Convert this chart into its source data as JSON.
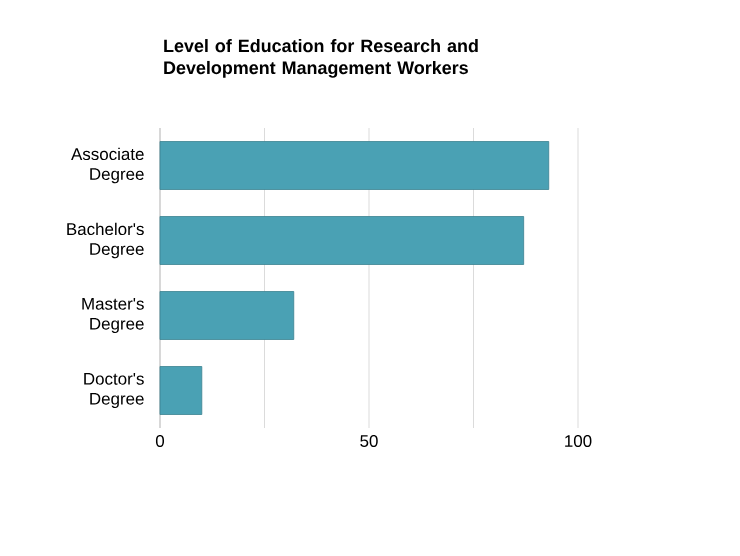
{
  "chart_data": {
    "type": "bar",
    "orientation": "horizontal",
    "title": "Level of Education for Research and Development Management Workers",
    "categories": [
      "Associate Degree",
      "Bachelor's Degree",
      "Master's Degree",
      "Doctor's Degree"
    ],
    "values": [
      93,
      87,
      32,
      10
    ],
    "color": "#4aa1b4",
    "xlim": [
      0,
      100
    ],
    "xticks": [
      0,
      {
        "value": 25,
        "label": null
      },
      50,
      {
        "value": 75,
        "label": null
      },
      100
    ],
    "grid": "x"
  }
}
